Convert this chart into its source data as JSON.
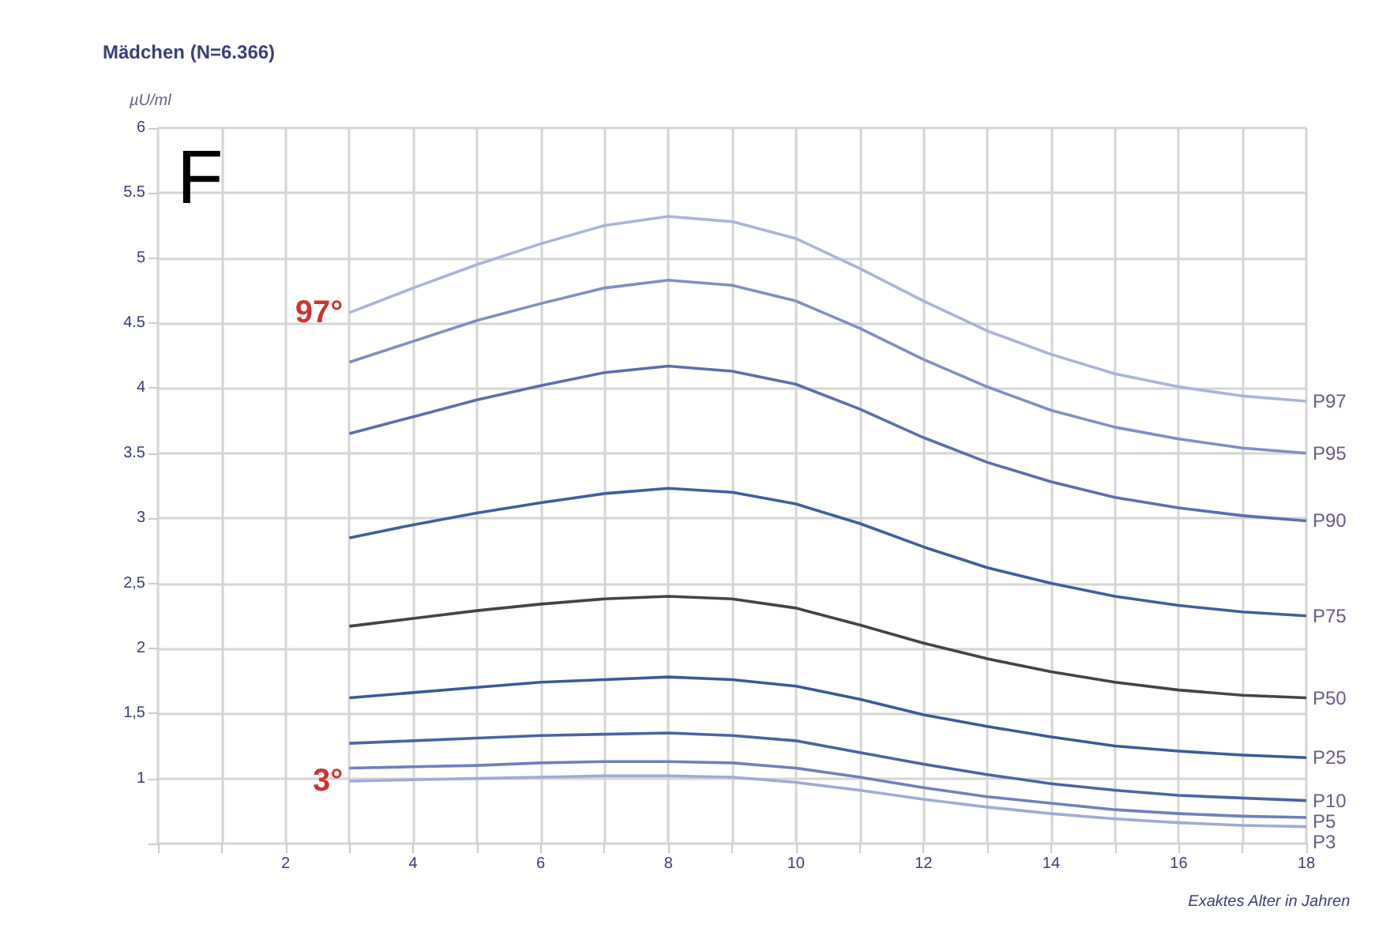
{
  "chart_data": {
    "type": "line",
    "title": "Mädchen (N=6.366)",
    "ylabel": "µU/ml",
    "xlabel": "Exaktes Alter in Jahren",
    "x": [
      3,
      4,
      5,
      6,
      7,
      8,
      9,
      10,
      11,
      12,
      13,
      14,
      15,
      16,
      17,
      18
    ],
    "series": [
      {
        "name": "P97",
        "color": "#aab4d8",
        "values": [
          4.58,
          4.77,
          4.95,
          5.11,
          5.25,
          5.32,
          5.28,
          5.15,
          4.92,
          4.67,
          4.44,
          4.26,
          4.11,
          4.01,
          3.94,
          3.9
        ]
      },
      {
        "name": "P95",
        "color": "#7f8fc4",
        "values": [
          4.2,
          4.36,
          4.52,
          4.65,
          4.77,
          4.83,
          4.79,
          4.67,
          4.46,
          4.22,
          4.01,
          3.83,
          3.7,
          3.61,
          3.54,
          3.5
        ]
      },
      {
        "name": "P90",
        "color": "#5a6fae",
        "values": [
          3.65,
          3.78,
          3.91,
          4.02,
          4.12,
          4.17,
          4.13,
          4.03,
          3.84,
          3.62,
          3.43,
          3.28,
          3.16,
          3.08,
          3.02,
          2.98
        ]
      },
      {
        "name": "P75",
        "color": "#3f5f9e",
        "values": [
          2.85,
          2.95,
          3.04,
          3.12,
          3.19,
          3.23,
          3.2,
          3.11,
          2.96,
          2.78,
          2.62,
          2.5,
          2.4,
          2.33,
          2.28,
          2.25
        ]
      },
      {
        "name": "P50",
        "color": "#444444",
        "values": [
          2.17,
          2.23,
          2.29,
          2.34,
          2.38,
          2.4,
          2.38,
          2.31,
          2.18,
          2.04,
          1.92,
          1.82,
          1.74,
          1.68,
          1.64,
          1.62
        ]
      },
      {
        "name": "P25",
        "color": "#3a5a9a",
        "values": [
          1.62,
          1.66,
          1.7,
          1.74,
          1.76,
          1.78,
          1.76,
          1.71,
          1.61,
          1.49,
          1.4,
          1.32,
          1.25,
          1.21,
          1.18,
          1.16
        ]
      },
      {
        "name": "P10",
        "color": "#4a64a4",
        "values": [
          1.27,
          1.29,
          1.31,
          1.33,
          1.34,
          1.35,
          1.33,
          1.29,
          1.2,
          1.11,
          1.03,
          0.96,
          0.91,
          0.87,
          0.85,
          0.83
        ]
      },
      {
        "name": "P5",
        "color": "#7080bb",
        "values": [
          1.08,
          1.09,
          1.1,
          1.12,
          1.13,
          1.13,
          1.12,
          1.08,
          1.01,
          0.93,
          0.86,
          0.81,
          0.76,
          0.73,
          0.71,
          0.7
        ]
      },
      {
        "name": "P3",
        "color": "#a0aad4",
        "values": [
          0.98,
          0.99,
          1.0,
          1.01,
          1.02,
          1.02,
          1.01,
          0.97,
          0.91,
          0.84,
          0.78,
          0.73,
          0.69,
          0.66,
          0.64,
          0.63
        ]
      }
    ],
    "xlim": [
      0,
      18
    ],
    "xticks": [
      {
        "value": 0,
        "label": null
      },
      {
        "value": 1,
        "label": null
      },
      2,
      {
        "value": 3,
        "label": null
      },
      4,
      {
        "value": 5,
        "label": null
      },
      6,
      {
        "value": 7,
        "label": null
      },
      8,
      {
        "value": 9,
        "label": null
      },
      10,
      {
        "value": 11,
        "label": null
      },
      12,
      {
        "value": 13,
        "label": null
      },
      14,
      {
        "value": 15,
        "label": null
      },
      16,
      {
        "value": 17,
        "label": null
      },
      18
    ],
    "ylim": [
      0.5,
      6
    ],
    "yticks": [
      {
        "value": 0.5,
        "label": null
      },
      1,
      {
        "value": 1.5,
        "label": "1,5"
      },
      2,
      {
        "value": 2.5,
        "label": "2,5"
      },
      3,
      3.5,
      4,
      4.5,
      5,
      5.5,
      6
    ],
    "annotations": [
      "F",
      {
        "text": "97°",
        "x": 3,
        "y": 4.58
      },
      {
        "text": "3°",
        "x": 3,
        "y": 0.98
      }
    ],
    "grid": true,
    "legend": false,
    "marker": "none",
    "line_style": "solid"
  }
}
